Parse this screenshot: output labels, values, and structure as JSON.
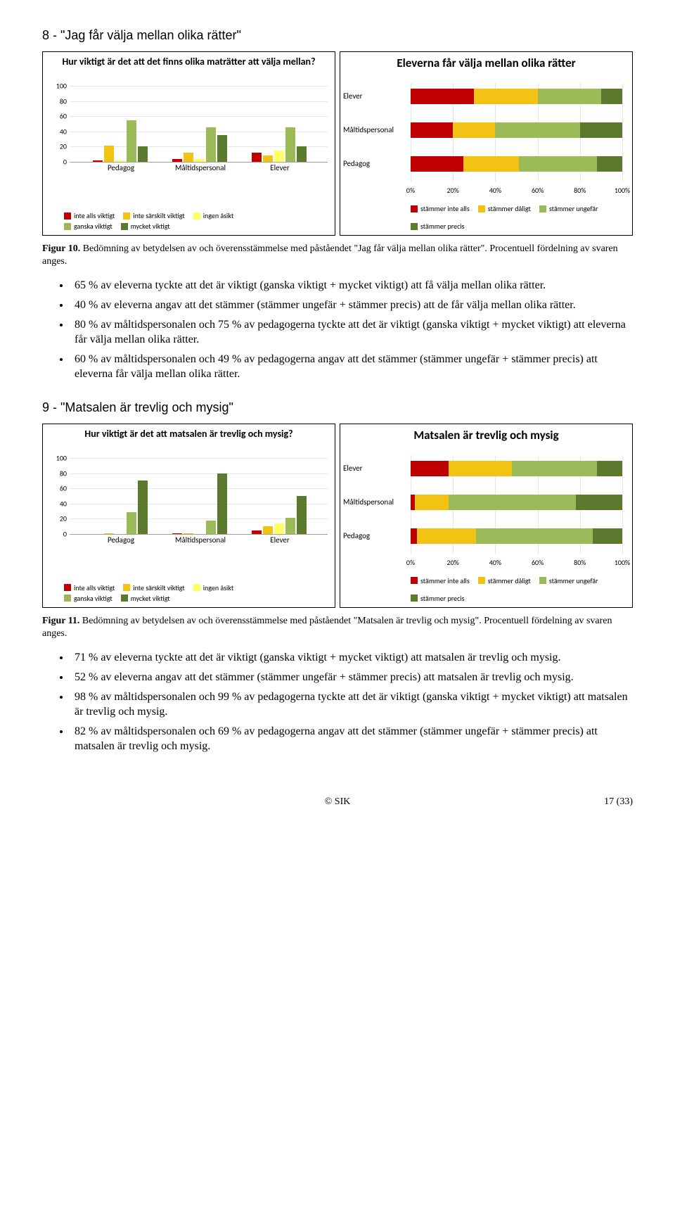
{
  "colors": {
    "c1": "#c00000",
    "c2": "#f2c314",
    "c3": "#ffff66",
    "c4": "#9bbb59",
    "c5": "#5c7a2e",
    "grid": "#e6e6e6",
    "axis": "#9e9e9e"
  },
  "section8": {
    "heading": "8 - \"Jag får välja mellan olika rätter\"",
    "caption": "Figur 10. Bedömning av betydelsen av och överensstämmelse med påståendet \"Jag får välja mellan olika rätter\". Procentuell fördelning av svaren anges.",
    "bullets": [
      "65 % av eleverna tyckte att det är viktigt (ganska viktigt + mycket viktigt) att få välja mellan olika rätter.",
      "40 % av eleverna angav att det stämmer (stämmer ungefär + stämmer precis) att de får välja mellan olika rätter.",
      "80 % av måltidspersonalen och 75 % av pedagogerna tyckte att det är viktigt (ganska viktigt + mycket viktigt) att eleverna får välja mellan olika rätter.",
      "60 % av måltidspersonalen och 49 % av pedagogerna angav att det stämmer (stämmer ungefär + stämmer precis) att eleverna får välja mellan olika rätter."
    ],
    "left": {
      "title": "Hur viktigt är det att det finns olika maträtter att välja mellan?",
      "ymax": 100,
      "yticks": [
        0,
        20,
        40,
        60,
        80,
        100
      ],
      "categories": [
        "Pedagog",
        "Måltidspersonal",
        "Elever"
      ],
      "series": [
        "inte alls viktigt",
        "inte särskilt viktigt",
        "ingen åsikt",
        "ganska viktigt",
        "mycket viktigt"
      ],
      "data": [
        [
          2,
          21,
          2,
          55,
          20
        ],
        [
          4,
          12,
          4,
          45,
          35
        ],
        [
          12,
          8,
          15,
          45,
          20
        ]
      ]
    },
    "right": {
      "title": "Eleverna får välja mellan olika rätter",
      "rows": [
        "Elever",
        "Måltidspersonal",
        "Pedagog"
      ],
      "series": [
        "stämmer inte alls",
        "stämmer dåligt",
        "stämmer ungefär",
        "stämmer precis"
      ],
      "data": [
        [
          30,
          30,
          30,
          10
        ],
        [
          20,
          20,
          40,
          20
        ],
        [
          25,
          26,
          37,
          12
        ]
      ],
      "xticks": [
        "0%",
        "20%",
        "40%",
        "60%",
        "80%",
        "100%"
      ]
    }
  },
  "section9": {
    "heading": "9 - \"Matsalen är trevlig och mysig\"",
    "caption": "Figur 11. Bedömning av betydelsen av och överensstämmelse med påståendet \"Matsalen är trevlig och mysig\". Procentuell fördelning av svaren anges.",
    "bullets": [
      "71 % av eleverna tyckte att det är viktigt (ganska viktigt + mycket viktigt) att matsalen är trevlig och mysig.",
      "52 % av eleverna angav att det stämmer (stämmer ungefär + stämmer precis) att matsalen är trevlig och mysig.",
      "98 % av måltidspersonalen och 99 % av pedagogerna tyckte att det är viktigt (ganska viktigt + mycket viktigt) att matsalen är trevlig och mysig.",
      "82 % av måltidspersonalen och 69 % av pedagogerna angav att det stämmer (stämmer ungefär + stämmer precis) att matsalen är trevlig och mysig."
    ],
    "left": {
      "title": "Hur viktigt är det att matsalen är trevlig och mysig?",
      "ymax": 100,
      "yticks": [
        0,
        20,
        40,
        60,
        80,
        100
      ],
      "categories": [
        "Pedagog",
        "Måltidspersonal",
        "Elever"
      ],
      "series": [
        "inte alls viktigt",
        "inte särskilt viktigt",
        "ingen åsikt",
        "ganska viktigt",
        "mycket viktigt"
      ],
      "data": [
        [
          0,
          1,
          0,
          29,
          70
        ],
        [
          1,
          1,
          0,
          18,
          80
        ],
        [
          5,
          10,
          14,
          21,
          50
        ]
      ]
    },
    "right": {
      "title": "Matsalen är trevlig och mysig",
      "rows": [
        "Elever",
        "Måltidspersonal",
        "Pedagog"
      ],
      "series": [
        "stämmer inte alls",
        "stämmer dåligt",
        "stämmer ungefär",
        "stämmer precis"
      ],
      "data": [
        [
          18,
          30,
          40,
          12
        ],
        [
          2,
          16,
          60,
          22
        ],
        [
          3,
          28,
          55,
          14
        ]
      ],
      "xticks": [
        "0%",
        "20%",
        "40%",
        "60%",
        "80%",
        "100%"
      ]
    }
  },
  "footer": {
    "center": "© SIK",
    "right": "17 (33)"
  }
}
